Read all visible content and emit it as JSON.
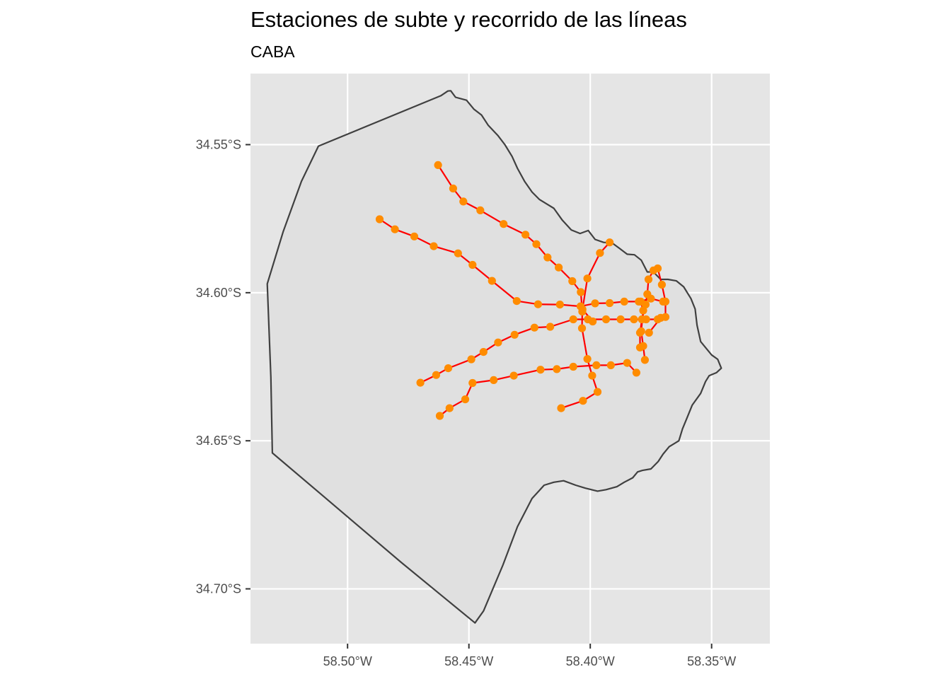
{
  "title": "Estaciones de subte y recorrido de las líneas",
  "subtitle": "CABA",
  "colors": {
    "panel_background": "#e5e5e5",
    "gridline": "#ffffff",
    "city_fill": "#e0e0e0",
    "city_border": "#404040",
    "lines": "#ff0000",
    "stations": "#ff8c00"
  },
  "chart_data": {
    "type": "map",
    "grid": true,
    "x_ticks": [
      {
        "value": -58.5,
        "label": "58.50°W"
      },
      {
        "value": -58.45,
        "label": "58.45°W"
      },
      {
        "value": -58.4,
        "label": "58.40°W"
      },
      {
        "value": -58.35,
        "label": "58.35°W"
      }
    ],
    "y_ticks": [
      {
        "value": -34.55,
        "label": "34.55°S"
      },
      {
        "value": -34.6,
        "label": "34.60°S"
      },
      {
        "value": -34.65,
        "label": "34.65°S"
      },
      {
        "value": -34.7,
        "label": "34.70°S"
      }
    ],
    "xlim": [
      -58.54,
      -58.326
    ],
    "ylim": [
      -34.7185,
      -34.526
    ],
    "boundary": [
      [
        -58.4616,
        -34.5335
      ],
      [
        -58.4587,
        -34.5319
      ],
      [
        -58.4575,
        -34.5318
      ],
      [
        -58.4555,
        -34.534
      ],
      [
        -58.451,
        -34.535
      ],
      [
        -58.448,
        -34.538
      ],
      [
        -58.4448,
        -34.54
      ],
      [
        -58.442,
        -34.5435
      ],
      [
        -58.438,
        -34.547
      ],
      [
        -58.4352,
        -34.55
      ],
      [
        -58.4322,
        -34.554
      ],
      [
        -58.43,
        -34.558
      ],
      [
        -58.427,
        -34.5625
      ],
      [
        -58.424,
        -34.566
      ],
      [
        -58.421,
        -34.5685
      ],
      [
        -58.418,
        -34.57
      ],
      [
        -58.415,
        -34.5715
      ],
      [
        -58.4115,
        -34.5755
      ],
      [
        -58.4078,
        -34.5788
      ],
      [
        -58.4042,
        -34.58
      ],
      [
        -58.4008,
        -34.579
      ],
      [
        -58.398,
        -34.582
      ],
      [
        -58.3945,
        -34.583
      ],
      [
        -58.391,
        -34.5832
      ],
      [
        -58.388,
        -34.585
      ],
      [
        -58.3848,
        -34.587
      ],
      [
        -58.3818,
        -34.5872
      ],
      [
        -58.379,
        -34.589
      ],
      [
        -58.3765,
        -34.593
      ],
      [
        -58.374,
        -34.593
      ],
      [
        -58.371,
        -34.5955
      ],
      [
        -58.368,
        -34.5955
      ],
      [
        -58.3645,
        -34.596
      ],
      [
        -58.3615,
        -34.598
      ],
      [
        -58.3585,
        -34.602
      ],
      [
        -58.3568,
        -34.6055
      ],
      [
        -58.356,
        -34.611
      ],
      [
        -58.3545,
        -34.6165
      ],
      [
        -58.352,
        -34.619
      ],
      [
        -58.35,
        -34.621
      ],
      [
        -58.3475,
        -34.6225
      ],
      [
        -58.346,
        -34.6255
      ],
      [
        -58.348,
        -34.627
      ],
      [
        -58.351,
        -34.628
      ],
      [
        -58.3525,
        -34.63
      ],
      [
        -58.3545,
        -34.634
      ],
      [
        -58.358,
        -34.638
      ],
      [
        -58.36,
        -34.642
      ],
      [
        -58.362,
        -34.646
      ],
      [
        -58.3635,
        -34.65
      ],
      [
        -58.3675,
        -34.652
      ],
      [
        -58.37,
        -34.6545
      ],
      [
        -58.372,
        -34.657
      ],
      [
        -58.375,
        -34.6595
      ],
      [
        -58.3785,
        -34.66
      ],
      [
        -58.3805,
        -34.6605
      ],
      [
        -58.3825,
        -34.6625
      ],
      [
        -58.386,
        -34.664
      ],
      [
        -58.389,
        -34.6655
      ],
      [
        -58.3935,
        -34.6665
      ],
      [
        -58.397,
        -34.667
      ],
      [
        -58.402,
        -34.666
      ],
      [
        -58.406,
        -34.665
      ],
      [
        -58.411,
        -34.6635
      ],
      [
        -58.415,
        -34.664
      ],
      [
        -58.419,
        -34.665
      ],
      [
        -58.424,
        -34.6695
      ],
      [
        -58.43,
        -34.679
      ],
      [
        -58.436,
        -34.692
      ],
      [
        -58.444,
        -34.7075
      ],
      [
        -58.4475,
        -34.7115
      ],
      [
        -58.478,
        -34.691
      ],
      [
        -58.5097,
        -34.6689
      ],
      [
        -58.531,
        -34.6541
      ],
      [
        -58.5316,
        -34.6285
      ],
      [
        -58.5331,
        -34.597
      ],
      [
        -58.5265,
        -34.5793
      ],
      [
        -58.519,
        -34.5624
      ],
      [
        -58.512,
        -34.5505
      ],
      [
        -58.4616,
        -34.5335
      ]
    ],
    "lines": [
      {
        "stations": [
          [
            -58.4627,
            -34.5569
          ],
          [
            -58.4565,
            -34.5648
          ],
          [
            -58.4523,
            -34.5692
          ],
          [
            -58.4453,
            -34.5722
          ],
          [
            -58.4357,
            -34.5768
          ],
          [
            -58.4267,
            -34.5804
          ],
          [
            -58.4222,
            -34.5836
          ],
          [
            -58.4176,
            -34.5881
          ],
          [
            -58.413,
            -34.5915
          ],
          [
            -58.4074,
            -34.5961
          ],
          [
            -58.4039,
            -34.5998
          ],
          [
            -58.4033,
            -34.6064
          ],
          [
            -58.4034,
            -34.612
          ],
          [
            -58.4012,
            -34.6224
          ],
          [
            -58.3992,
            -34.628
          ],
          [
            -58.397,
            -34.6335
          ],
          [
            -58.403,
            -34.6365
          ],
          [
            -58.412,
            -34.639
          ]
        ]
      },
      {
        "stations": [
          [
            -58.4868,
            -34.5752
          ],
          [
            -58.4805,
            -34.5786
          ],
          [
            -58.4725,
            -34.581
          ],
          [
            -58.4645,
            -34.5843
          ],
          [
            -58.4545,
            -34.5867
          ],
          [
            -58.4485,
            -34.5906
          ],
          [
            -58.4405,
            -34.596
          ],
          [
            -58.4303,
            -34.6028
          ],
          [
            -58.4215,
            -34.6039
          ],
          [
            -58.4125,
            -34.604
          ],
          [
            -58.404,
            -34.6046
          ],
          [
            -58.398,
            -34.6036
          ],
          [
            -58.392,
            -34.6035
          ],
          [
            -58.386,
            -34.603
          ],
          [
            -58.38,
            -34.603
          ],
          [
            -58.375,
            -34.602
          ],
          [
            -58.37,
            -34.603
          ]
        ]
      },
      {
        "stations": [
          [
            -58.47,
            -34.6304
          ],
          [
            -58.4635,
            -34.6278
          ],
          [
            -58.4585,
            -34.6255
          ],
          [
            -58.449,
            -34.6225
          ],
          [
            -58.444,
            -34.62
          ],
          [
            -58.438,
            -34.6168
          ],
          [
            -58.4312,
            -34.6142
          ],
          [
            -58.423,
            -34.6118
          ],
          [
            -58.4165,
            -34.6115
          ],
          [
            -58.407,
            -34.609
          ],
          [
            -58.401,
            -34.609
          ],
          [
            -58.3935,
            -34.609
          ],
          [
            -58.3875,
            -34.609
          ],
          [
            -58.382,
            -34.609
          ],
          [
            -58.377,
            -34.609
          ],
          [
            -58.3722,
            -34.609
          ]
        ]
      },
      {
        "stations": [
          [
            -58.462,
            -34.6416
          ],
          [
            -58.458,
            -34.639
          ],
          [
            -58.4515,
            -34.636
          ],
          [
            -58.4485,
            -34.6305
          ],
          [
            -58.4398,
            -34.6295
          ],
          [
            -58.4315,
            -34.628
          ],
          [
            -58.4205,
            -34.626
          ],
          [
            -58.4138,
            -34.6258
          ],
          [
            -58.407,
            -34.625
          ],
          [
            -58.3975,
            -34.6245
          ],
          [
            -58.3915,
            -34.6245
          ],
          [
            -58.3848,
            -34.6237
          ],
          [
            -58.381,
            -34.627
          ]
        ]
      },
      {
        "stations": [
          [
            -58.392,
            -34.583
          ],
          [
            -58.396,
            -34.5866
          ],
          [
            -58.4012,
            -34.5952
          ],
          [
            -58.4032,
            -34.6056
          ],
          [
            -58.399,
            -34.6097
          ]
        ]
      },
      {
        "stations": [
          [
            -58.3792,
            -34.603
          ],
          [
            -58.3782,
            -34.606
          ],
          [
            -58.379,
            -34.613
          ],
          [
            -58.3782,
            -34.618
          ],
          [
            -58.3775,
            -34.6227
          ]
        ]
      },
      {
        "stations": [
          [
            -58.3795,
            -34.6185
          ],
          [
            -58.3795,
            -34.6135
          ],
          [
            -58.3787,
            -34.609
          ],
          [
            -58.3772,
            -34.604
          ],
          [
            -58.3765,
            -34.6005
          ],
          [
            -58.376,
            -34.5955
          ],
          [
            -58.374,
            -34.5925
          ],
          [
            -58.3722,
            -34.5918
          ],
          [
            -58.3705,
            -34.5973
          ],
          [
            -58.369,
            -34.603
          ],
          [
            -58.369,
            -34.6082
          ],
          [
            -58.371,
            -34.6085
          ],
          [
            -58.3758,
            -34.6135
          ]
        ]
      }
    ]
  }
}
